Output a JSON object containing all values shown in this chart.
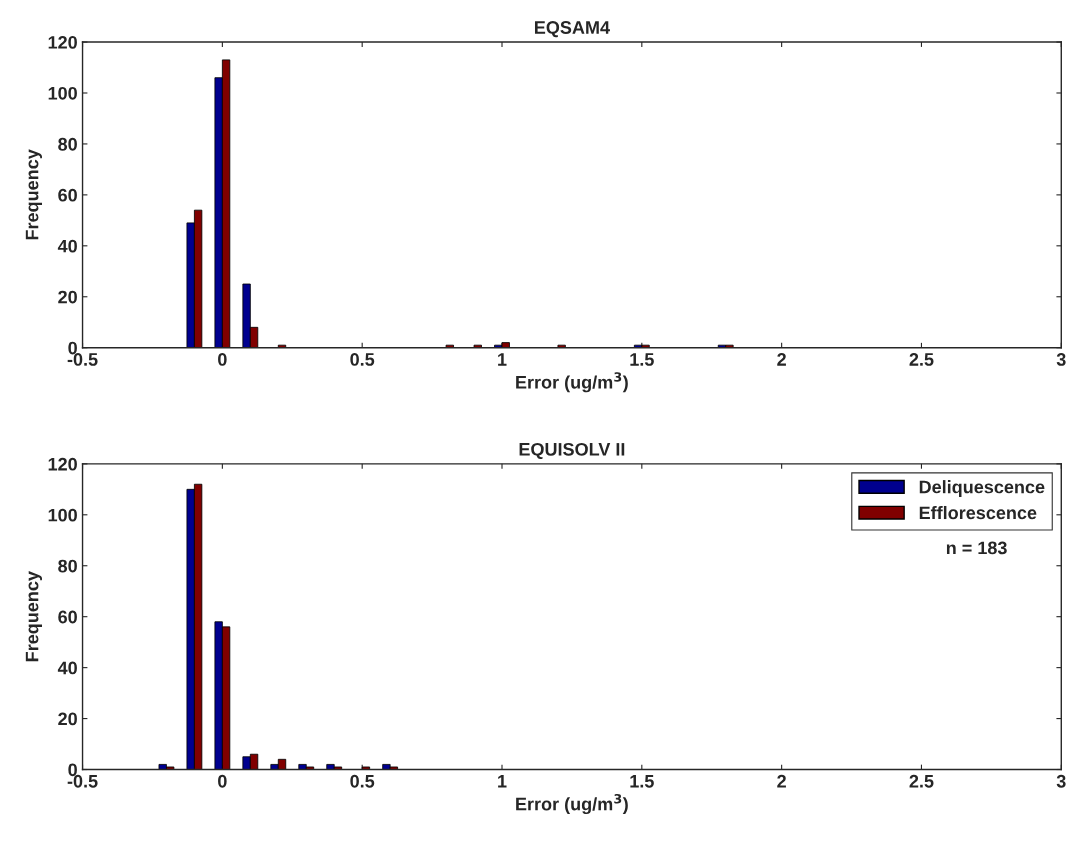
{
  "chart_data": [
    {
      "type": "bar",
      "title": "EQSAM4",
      "xlabel": "Error (ug/m$^{3}$)",
      "ylabel": "Frequency",
      "x": [
        -0.1,
        0,
        0.1,
        0.2,
        0.3,
        0.4,
        0.5,
        0.6,
        0.7,
        0.8,
        0.9,
        1.0,
        1.1,
        1.2,
        1.3,
        1.4,
        1.5,
        1.6,
        1.7,
        1.8
      ],
      "series": [
        {
          "color": "#00008f",
          "values": [
            49,
            106,
            25,
            null,
            null,
            null,
            null,
            null,
            null,
            null,
            null,
            1,
            null,
            null,
            null,
            null,
            1,
            null,
            null,
            1
          ]
        },
        {
          "color": "#800000",
          "values": [
            54,
            113,
            8,
            1,
            null,
            null,
            null,
            null,
            null,
            1,
            1,
            2,
            null,
            1,
            null,
            null,
            1,
            null,
            null,
            1
          ]
        }
      ],
      "xlim": [
        -0.5,
        3
      ],
      "xticks": [
        -0.5,
        0,
        0.5,
        1,
        1.5,
        2,
        2.5,
        3
      ],
      "ylim": [
        0,
        120
      ],
      "yticks": [
        0,
        20,
        40,
        60,
        80,
        100,
        120
      ],
      "grid": false
    },
    {
      "type": "bar",
      "title": "EQUISOLV II",
      "xlabel": "Error (ug/m$^{3}$)",
      "ylabel": "Frequency",
      "x": [
        -0.2,
        -0.1,
        0,
        0.1,
        0.2,
        0.3,
        0.4,
        0.5,
        0.6
      ],
      "series": [
        {
          "name": "Deliquescence",
          "color": "#00008f",
          "values": [
            2,
            110,
            58,
            5,
            2,
            2,
            2,
            null,
            2
          ]
        },
        {
          "name": "Efflorescence",
          "color": "#800000",
          "values": [
            1,
            112,
            56,
            6,
            4,
            1,
            1,
            1,
            1
          ]
        }
      ],
      "xlim": [
        -0.5,
        3
      ],
      "xticks": [
        -0.5,
        0,
        0.5,
        1,
        1.5,
        2,
        2.5,
        3
      ],
      "ylim": [
        0,
        120
      ],
      "yticks": [
        0,
        20,
        40,
        60,
        80,
        100,
        120
      ],
      "grid": false,
      "legend": "top right",
      "annotations": [
        "n = 183"
      ]
    }
  ]
}
